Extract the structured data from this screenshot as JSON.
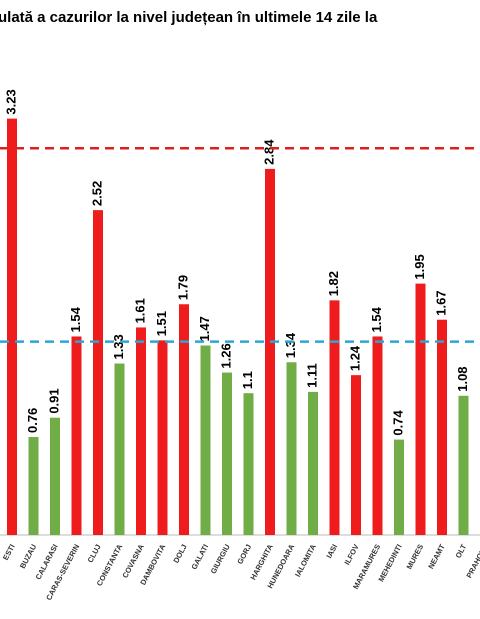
{
  "chart_data": {
    "type": "bar",
    "title": "ulată a cazurilor la nivel județean în ultimele 14 zile la",
    "categories": [
      "ESTI",
      "BUZAU",
      "CALARASI",
      "CARAS-SEVERIN",
      "CLUJ",
      "CONSTANTA",
      "COVASNA",
      "DAMBOVITA",
      "DOLJ",
      "GALATI",
      "GIURGIU",
      "GORJ",
      "HARGHITA",
      "HUNEDOARA",
      "IALOMITA",
      "IASI",
      "ILFOV",
      "MARAMURES",
      "MEHEDINTI",
      "MURES",
      "NEAMT",
      "OLT",
      "PRAHOVA"
    ],
    "values": [
      3.23,
      0.76,
      0.91,
      1.54,
      2.52,
      1.33,
      1.61,
      1.51,
      1.79,
      1.47,
      1.26,
      1.1,
      2.84,
      1.34,
      1.11,
      1.82,
      1.24,
      1.54,
      0.74,
      1.95,
      1.67,
      1.08,
      null
    ],
    "colors": [
      "#ee1c1c",
      "#70ad47",
      "#70ad47",
      "#ee1c1c",
      "#ee1c1c",
      "#70ad47",
      "#ee1c1c",
      "#ee1c1c",
      "#ee1c1c",
      "#70ad47",
      "#70ad47",
      "#70ad47",
      "#ee1c1c",
      "#70ad47",
      "#70ad47",
      "#ee1c1c",
      "#ee1c1c",
      "#ee1c1c",
      "#70ad47",
      "#ee1c1c",
      "#ee1c1c",
      "#70ad47",
      "#70ad47"
    ],
    "reference_lines": [
      {
        "value": 3,
        "color": "#d9221c"
      },
      {
        "value": 1.5,
        "color": "#2aa7d6"
      }
    ],
    "ylim": [
      0,
      4.15
    ]
  }
}
